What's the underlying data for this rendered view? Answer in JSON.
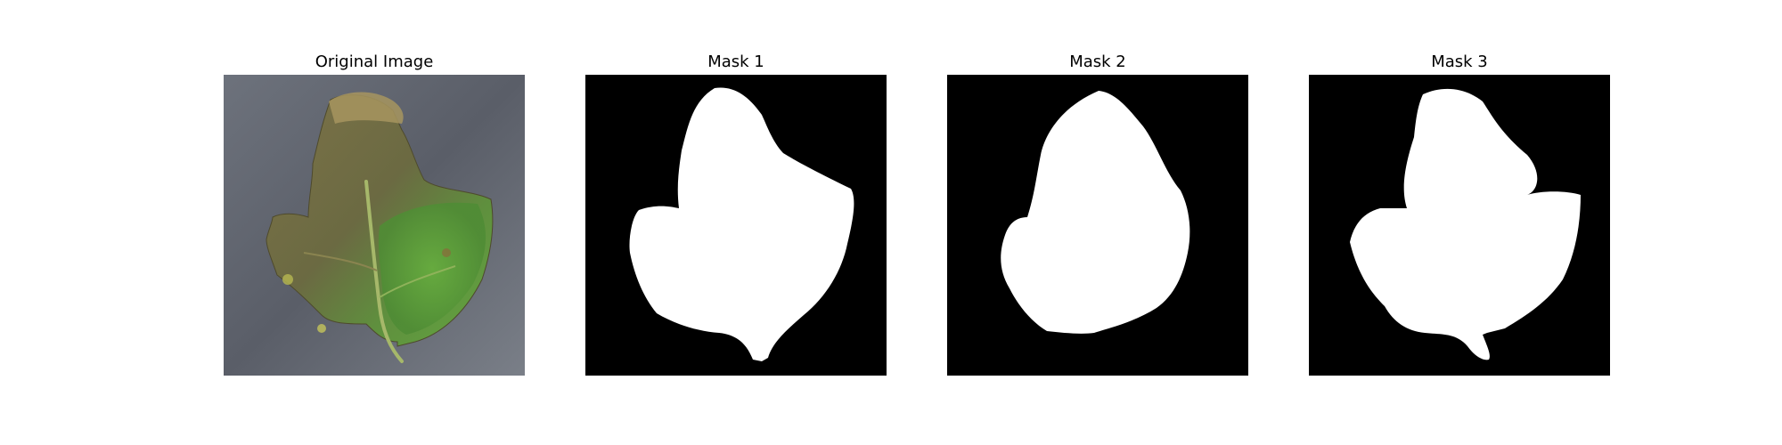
{
  "figure": {
    "panels": [
      {
        "title": "Original Image"
      },
      {
        "title": "Mask 1"
      },
      {
        "title": "Mask 2"
      },
      {
        "title": "Mask 3"
      }
    ]
  },
  "colors": {
    "background_surface": "#5c6068",
    "leaf_diseased": "#6e6a45",
    "leaf_healthy": "#5fa03c",
    "mask_background": "#000000",
    "mask_foreground": "#ffffff"
  }
}
